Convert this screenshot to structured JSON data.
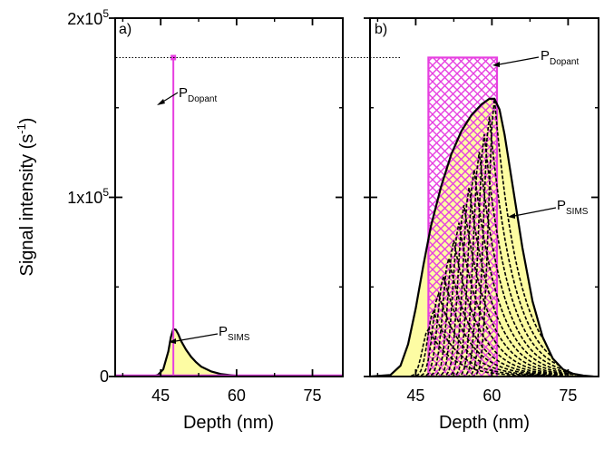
{
  "chart_data": [
    {
      "panel": "a)",
      "type": "area",
      "xlabel": "Depth (nm)",
      "ylabel_main": "Signal intensity (s",
      "ylabel_sup": "-1",
      "ylabel_close": ")",
      "xlim": [
        36,
        81
      ],
      "ylim": [
        0,
        200000
      ],
      "xticks": [
        45,
        60,
        75
      ],
      "xtick_labels": [
        "45",
        "60",
        "75"
      ],
      "yticks": [
        0,
        100000,
        200000
      ],
      "ytick_labels": [
        {
          "base": "0",
          "sup": ""
        },
        {
          "base": "1x10",
          "sup": "5"
        },
        {
          "base": "2x10",
          "sup": "5"
        }
      ],
      "reference_line_y": 178000,
      "dopant": {
        "x": 47.5,
        "peak": 178000,
        "label": "P",
        "sub": "Dopant"
      },
      "sims": {
        "label": "P",
        "sub": "SIMS",
        "x": [
          43.5,
          44.5,
          45.5,
          46.5,
          47.0,
          47.5,
          48.0,
          48.5,
          49.0,
          50.0,
          51.0,
          52.0,
          53.0,
          55.0,
          57.0,
          60.0,
          63.0,
          66.0,
          70.0
        ],
        "y": [
          0,
          1000,
          4000,
          14000,
          22000,
          26500,
          26000,
          23500,
          20000,
          15000,
          11000,
          8000,
          5500,
          2800,
          1300,
          400,
          100,
          0,
          0
        ]
      },
      "colors": {
        "dopant": "#e63fe0",
        "sims_fill": "#fdfca3",
        "sims_line": "#000000",
        "baseline": "#cc33cc"
      }
    },
    {
      "panel": "b)",
      "type": "area",
      "xlabel": "Depth (nm)",
      "xlim": [
        36,
        81
      ],
      "ylim": [
        0,
        200000
      ],
      "xticks": [
        45,
        60,
        75
      ],
      "xtick_labels": [
        "45",
        "60",
        "75"
      ],
      "reference_line_y": 178000,
      "dopant": {
        "x_start": 47.5,
        "x_end": 61.0,
        "level": 178000,
        "label": "P",
        "sub": "Dopant"
      },
      "sims": {
        "label": "P",
        "sub": "SIMS",
        "x": [
          36.0,
          40.0,
          42.0,
          43.5,
          45.0,
          46.5,
          48.0,
          50.0,
          52.0,
          54.0,
          56.0,
          58.0,
          59.5,
          60.5,
          61.5,
          62.5,
          64.0,
          66.0,
          68.0,
          70.0,
          72.0,
          74.0,
          76.0,
          78.0,
          80.0
        ],
        "y": [
          0,
          800,
          6000,
          18000,
          38000,
          62000,
          84000,
          106000,
          124000,
          137000,
          146000,
          152000,
          155000,
          155000,
          149000,
          135000,
          108000,
          72000,
          42000,
          22000,
          10000,
          4000,
          1500,
          500,
          0
        ]
      },
      "component_peaks": [
        47.5,
        48.5,
        49.5,
        50.5,
        51.5,
        52.5,
        53.5,
        54.5,
        55.5,
        56.5,
        57.5,
        58.5,
        59.5,
        60.5
      ],
      "colors": {
        "dopant": "#e63fe0",
        "sims_fill": "#fdfca3",
        "sims_line": "#000000"
      }
    }
  ]
}
